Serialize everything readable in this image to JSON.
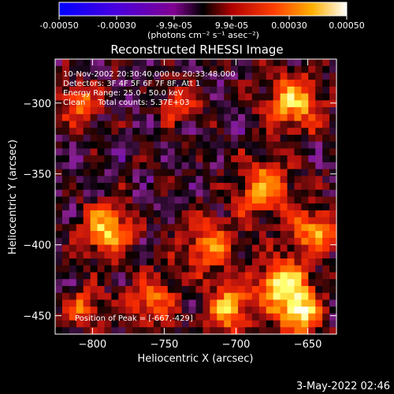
{
  "colorbar": {
    "ticks": [
      "-0.00050",
      "-0.00030",
      "-9.9e-05",
      "9.9e-05",
      "0.00030",
      "0.00050"
    ],
    "unit_label": "(photons cm⁻² s⁻¹ asec⁻²)",
    "range": [
      -0.0005,
      0.0005
    ]
  },
  "chart_data": {
    "type": "heatmap",
    "title": "Reconstructed RHESSI Image",
    "xlabel": "Heliocentric X (arcsec)",
    "ylabel": "Heliocentric Y (arcsec)",
    "xlim": [
      -826,
      -630
    ],
    "ylim": [
      -463,
      -269
    ],
    "x_ticks": [
      -800,
      -750,
      -700,
      -650
    ],
    "y_ticks": [
      -450,
      -400,
      -350,
      -300
    ],
    "x_tick_labels": [
      "−800",
      "−750",
      "−700",
      "−650"
    ],
    "y_tick_labels": [
      "−450",
      "−400",
      "−350",
      "−300"
    ],
    "peak": [
      -667,
      -429
    ],
    "annotations": [
      "10-Nov-2002 20:30:40.000 to 20:33:48.000",
      "Detectors: 3F 4F 5F 6F 7F 8F, Att 1",
      "Energy Range: 25.0 - 50.0 keV",
      "Clean     Total counts: 5.37E+03"
    ],
    "peak_label": "Position of Peak = [-667,-429]",
    "colormap": [
      "#0000ff",
      "#5a00cc",
      "#8a2090",
      "#000000",
      "#b01010",
      "#ff3000",
      "#ff9a00",
      "#ffff60",
      "#ffffff"
    ]
  },
  "footer": {
    "date": "3-May-2022 02:46"
  }
}
